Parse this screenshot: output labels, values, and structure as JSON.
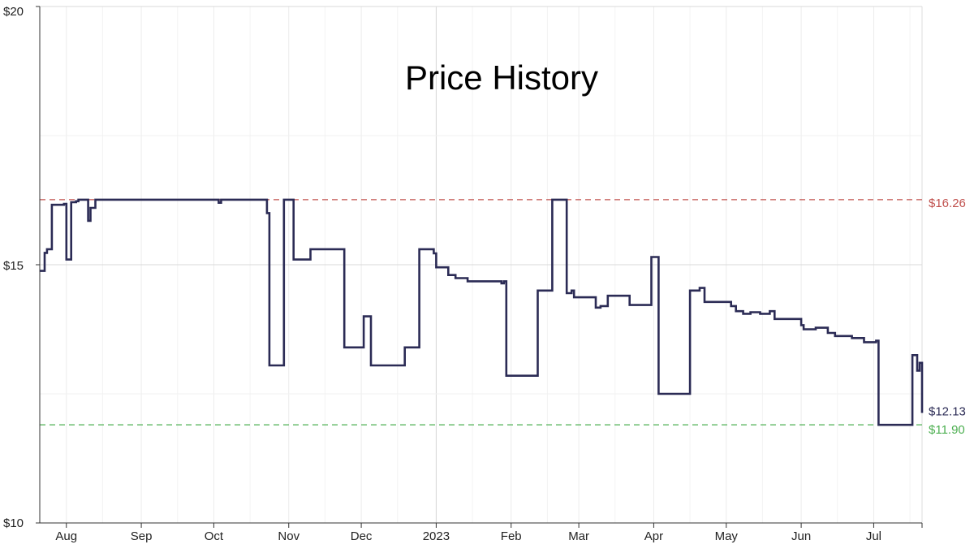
{
  "chart_data": {
    "type": "line",
    "title": "Price History",
    "xlabel": "",
    "ylabel": "",
    "ylim": [
      10,
      20
    ],
    "x_axis": "date",
    "xlim": [
      "2022-07-21",
      "2023-07-21"
    ],
    "x_ticks": [
      {
        "date": "2022-08-01",
        "label": "Aug"
      },
      {
        "date": "2022-09-01",
        "label": "Sep"
      },
      {
        "date": "2022-10-01",
        "label": "Oct"
      },
      {
        "date": "2022-11-01",
        "label": "Nov"
      },
      {
        "date": "2022-12-01",
        "label": "Dec"
      },
      {
        "date": "2023-01-01",
        "label": "2023"
      },
      {
        "date": "2023-02-01",
        "label": "Feb"
      },
      {
        "date": "2023-03-01",
        "label": "Mar"
      },
      {
        "date": "2023-04-01",
        "label": "Apr"
      },
      {
        "date": "2023-05-01",
        "label": "May"
      },
      {
        "date": "2023-06-01",
        "label": "Jun"
      },
      {
        "date": "2023-07-01",
        "label": "Jul"
      }
    ],
    "y_ticks": [
      {
        "value": 10,
        "label": "$10"
      },
      {
        "value": 15,
        "label": "$15"
      },
      {
        "value": 20,
        "label": "$20"
      }
    ],
    "grid": true,
    "reference_lines": [
      {
        "value": 16.26,
        "label": "$16.26",
        "color": "#c0504d",
        "style": "dashed"
      },
      {
        "value": 11.9,
        "label": "$11.90",
        "color": "#4caf50",
        "style": "dashed"
      }
    ],
    "last_value_label": {
      "value": 12.13,
      "label": "$12.13"
    },
    "series": [
      {
        "color": "#2b2b55",
        "step": true,
        "points": [
          [
            "2022-07-21",
            14.88
          ],
          [
            "2022-07-23",
            15.23
          ],
          [
            "2022-07-24",
            15.3
          ],
          [
            "2022-07-26",
            16.16
          ],
          [
            "2022-07-31",
            16.18
          ],
          [
            "2022-08-01",
            15.1
          ],
          [
            "2022-08-03",
            16.21
          ],
          [
            "2022-08-05",
            16.23
          ],
          [
            "2022-08-06",
            16.26
          ],
          [
            "2022-08-10",
            15.85
          ],
          [
            "2022-08-11",
            16.1
          ],
          [
            "2022-08-13",
            16.26
          ],
          [
            "2022-10-03",
            16.2
          ],
          [
            "2022-10-04",
            16.26
          ],
          [
            "2022-10-23",
            16.0
          ],
          [
            "2022-10-24",
            13.05
          ],
          [
            "2022-10-30",
            16.26
          ],
          [
            "2022-11-03",
            15.1
          ],
          [
            "2022-11-10",
            15.3
          ],
          [
            "2022-11-24",
            13.4
          ],
          [
            "2022-12-02",
            14.0
          ],
          [
            "2022-12-05",
            13.05
          ],
          [
            "2022-12-19",
            13.4
          ],
          [
            "2022-12-25",
            15.3
          ],
          [
            "2022-12-31",
            15.22
          ],
          [
            "2023-01-01",
            14.95
          ],
          [
            "2023-01-06",
            14.8
          ],
          [
            "2023-01-09",
            14.74
          ],
          [
            "2023-01-14",
            14.68
          ],
          [
            "2023-01-28",
            14.64
          ],
          [
            "2023-01-29",
            14.68
          ],
          [
            "2023-01-30",
            12.85
          ],
          [
            "2023-02-12",
            14.5
          ],
          [
            "2023-02-18",
            16.26
          ],
          [
            "2023-02-24",
            14.45
          ],
          [
            "2023-02-26",
            14.5
          ],
          [
            "2023-02-27",
            14.37
          ],
          [
            "2023-03-08",
            14.17
          ],
          [
            "2023-03-10",
            14.2
          ],
          [
            "2023-03-13",
            14.4
          ],
          [
            "2023-03-22",
            14.22
          ],
          [
            "2023-03-31",
            15.15
          ],
          [
            "2023-04-03",
            12.5
          ],
          [
            "2023-04-16",
            14.5
          ],
          [
            "2023-04-20",
            14.55
          ],
          [
            "2023-04-22",
            14.28
          ],
          [
            "2023-05-03",
            14.2
          ],
          [
            "2023-05-05",
            14.1
          ],
          [
            "2023-05-08",
            14.05
          ],
          [
            "2023-05-11",
            14.08
          ],
          [
            "2023-05-15",
            14.05
          ],
          [
            "2023-05-19",
            14.1
          ],
          [
            "2023-05-21",
            13.95
          ],
          [
            "2023-06-01",
            13.83
          ],
          [
            "2023-06-02",
            13.75
          ],
          [
            "2023-06-07",
            13.78
          ],
          [
            "2023-06-12",
            13.68
          ],
          [
            "2023-06-15",
            13.62
          ],
          [
            "2023-06-22",
            13.58
          ],
          [
            "2023-06-27",
            13.5
          ],
          [
            "2023-07-02",
            13.53
          ],
          [
            "2023-07-03",
            11.9
          ],
          [
            "2023-07-17",
            13.25
          ],
          [
            "2023-07-19",
            12.95
          ],
          [
            "2023-07-20",
            13.1
          ],
          [
            "2023-07-21",
            12.13
          ]
        ]
      }
    ]
  }
}
